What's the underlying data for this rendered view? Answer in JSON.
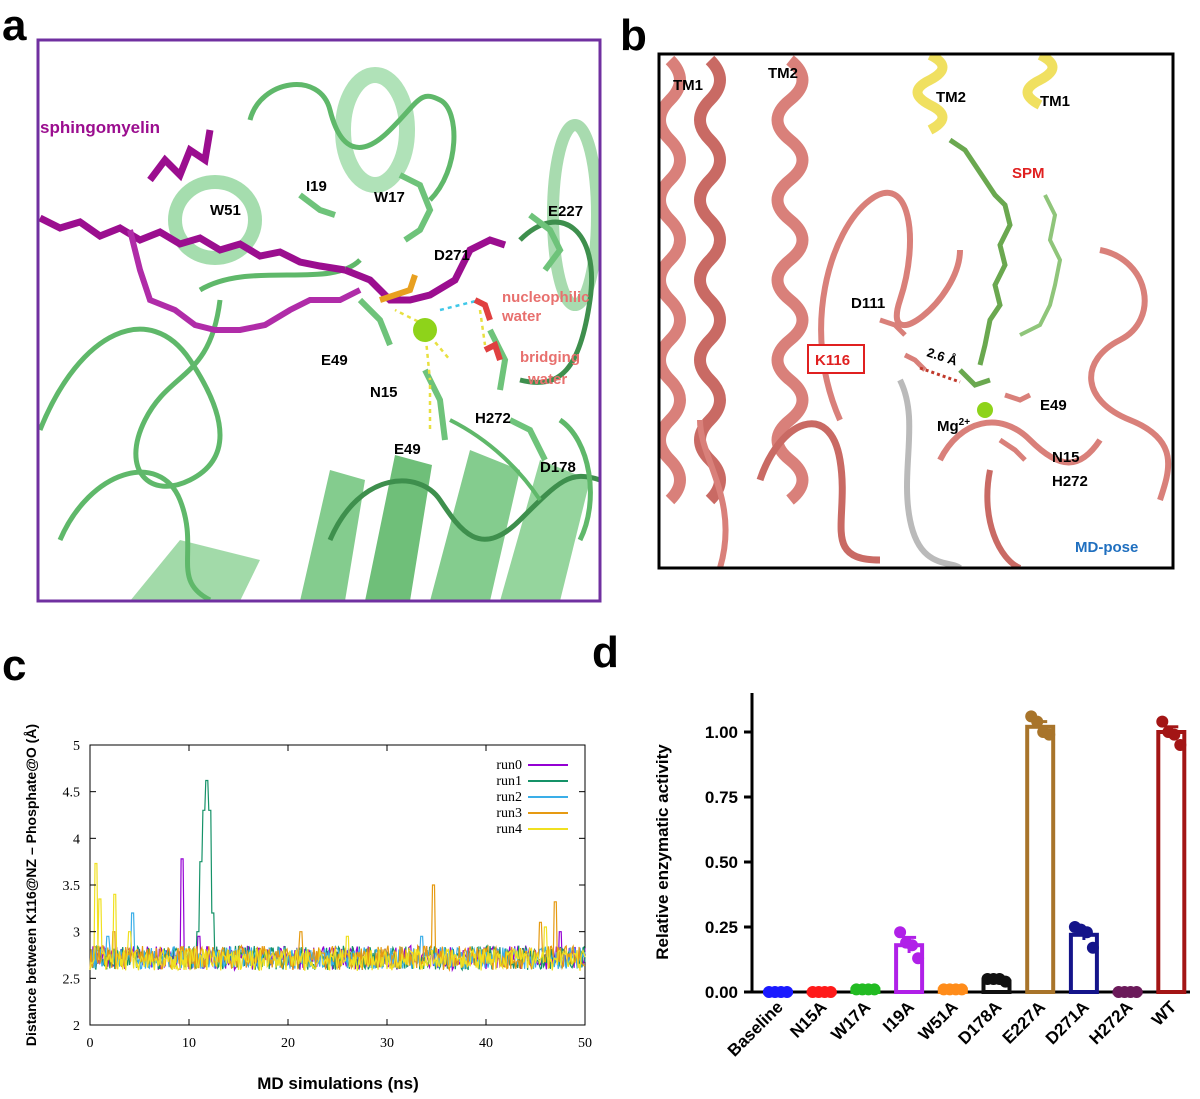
{
  "panel_labels": {
    "a": "a",
    "b": "b",
    "c": "c",
    "d": "d"
  },
  "panel_a": {
    "labels": {
      "sphingomyelin": "sphingomyelin",
      "I19": "I19",
      "W17": "W17",
      "W51": "W51",
      "E227": "E227",
      "D271": "D271",
      "nucleophilic": "nucleophilic",
      "water1": "water",
      "bridging": "bridging",
      "water2": "water",
      "E49_top": "E49",
      "N15": "N15",
      "H272": "H272",
      "E49_bottom": "E49",
      "D178": "D178"
    },
    "colors": {
      "border": "#7030a0",
      "protein": "#5fb86a",
      "ligand": "#9b0e8f",
      "mg": "#8ed31a",
      "water_label": "#e8706e",
      "hbond": "#e8e040"
    }
  },
  "panel_b": {
    "labels": {
      "TM1_left": "TM1",
      "TM2_left": "TM2",
      "TM2_right": "TM2",
      "TM1_right": "TM1",
      "SPM": "SPM",
      "D111": "D111",
      "K116": "K116",
      "distance": "2.6 Å",
      "Mg": "Mg",
      "Mg_charge": "2+",
      "E49": "E49",
      "N15": "N15",
      "H272": "H272",
      "MD_pose": "MD-pose"
    },
    "colors": {
      "protein": "#d9807a",
      "membrane_helix": "#f0e060",
      "ligand": "#6aa84f",
      "spm": "#e02020",
      "k116": "#e02020",
      "md_pose": "#1f6fbf"
    }
  },
  "chart_data": [
    {
      "type": "line",
      "panel": "c",
      "xlabel": "MD simulations (ns)",
      "ylabel": "Distance between K116@NZ – Phosphate@O (Å)",
      "xlim": [
        0,
        50
      ],
      "ylim": [
        2,
        5
      ],
      "xticks": [
        0,
        10,
        20,
        30,
        40,
        50
      ],
      "yticks": [
        2,
        2.5,
        3,
        3.5,
        4,
        4.5,
        5
      ],
      "legend_position": "top-right",
      "series": [
        {
          "name": "run0",
          "color": "#9400d3",
          "baseline": 2.72,
          "noise": 0.13,
          "spikes": [
            [
              9.3,
              3.78
            ],
            [
              11.0,
              2.95
            ],
            [
              47.5,
              3.0
            ]
          ]
        },
        {
          "name": "run1",
          "color": "#159268",
          "baseline": 2.72,
          "noise": 0.13,
          "spikes": [
            [
              11.2,
              3.75
            ],
            [
              11.5,
              4.3
            ],
            [
              11.8,
              4.62
            ],
            [
              12.1,
              4.3
            ],
            [
              12.4,
              3.2
            ],
            [
              10.9,
              3.0
            ]
          ]
        },
        {
          "name": "run2",
          "color": "#3aaee8",
          "baseline": 2.72,
          "noise": 0.12,
          "spikes": [
            [
              4.3,
              3.2
            ],
            [
              1.8,
              2.95
            ],
            [
              33.5,
              2.95
            ]
          ]
        },
        {
          "name": "run3",
          "color": "#e69a12",
          "baseline": 2.72,
          "noise": 0.13,
          "spikes": [
            [
              34.7,
              3.5
            ],
            [
              21.3,
              3.0
            ],
            [
              47.0,
              3.32
            ],
            [
              45.5,
              3.1
            ],
            [
              2.4,
              3.0
            ]
          ]
        },
        {
          "name": "run4",
          "color": "#f0e020",
          "baseline": 2.7,
          "noise": 0.12,
          "spikes": [
            [
              0.6,
              3.73
            ],
            [
              1.0,
              3.35
            ],
            [
              2.5,
              3.4
            ],
            [
              4.0,
              3.0
            ],
            [
              26.0,
              2.95
            ],
            [
              46.0,
              3.05
            ]
          ]
        }
      ]
    },
    {
      "type": "bar",
      "panel": "d",
      "ylabel": "Relative enzymatic activity",
      "ylim": [
        0,
        1.15
      ],
      "yticks": [
        "0.00",
        "0.25",
        "0.50",
        "0.75",
        "1.00"
      ],
      "categories": [
        "Baseline",
        "N15A",
        "W17A",
        "I19A",
        "W51A",
        "D178A",
        "E227A",
        "D271A",
        "H272A",
        "WT"
      ],
      "values": [
        0.0,
        0.0,
        0.01,
        0.18,
        0.01,
        0.04,
        1.02,
        0.22,
        0.0,
        1.0
      ],
      "errors": [
        0.0,
        0.0,
        0.005,
        0.03,
        0.005,
        0.01,
        0.02,
        0.02,
        0.0,
        0.02
      ],
      "colors": [
        "#1a1aff",
        "#ff1a1a",
        "#22bb22",
        "#b020e8",
        "#ff8c1a",
        "#111111",
        "#a8742a",
        "#14148a",
        "#6b1a5a",
        "#a31515"
      ],
      "points": [
        [
          0.0,
          0.0,
          0.0,
          0.0
        ],
        [
          0.0,
          0.0,
          0.0,
          0.0
        ],
        [
          0.01,
          0.01,
          0.01,
          0.01
        ],
        [
          0.23,
          0.19,
          0.18,
          0.13
        ],
        [
          0.01,
          0.01,
          0.01,
          0.01
        ],
        [
          0.05,
          0.05,
          0.05,
          0.04
        ],
        [
          1.06,
          1.04,
          1.0,
          0.99
        ],
        [
          0.25,
          0.24,
          0.23,
          0.17
        ],
        [
          0.0,
          0.0,
          0.0,
          0.0
        ],
        [
          1.04,
          1.0,
          0.99,
          0.95
        ]
      ]
    }
  ]
}
